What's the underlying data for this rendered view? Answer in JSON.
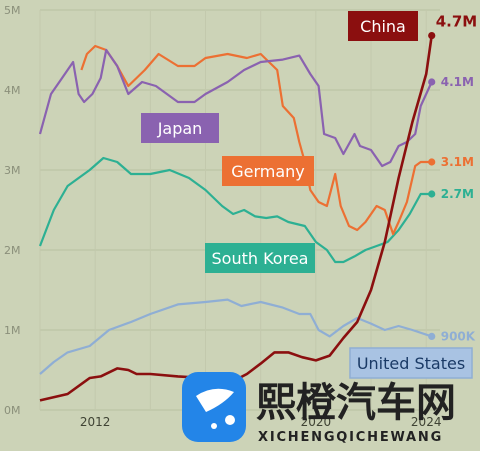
{
  "chart_data": {
    "type": "line",
    "title": "",
    "xlabel": "",
    "ylabel": "",
    "x_ticks": [
      "2012",
      "2020",
      "2024"
    ],
    "y_ticks": [
      "0M",
      "1M",
      "2M",
      "3M",
      "4M",
      "5M"
    ],
    "xlim": [
      2010,
      2024.5
    ],
    "ylim": [
      0,
      5
    ],
    "grid": true,
    "series": [
      {
        "name": "China",
        "color": "#8b0f0f",
        "end_label": "4.7M",
        "points": [
          [
            2010,
            0.12
          ],
          [
            2011,
            0.2
          ],
          [
            2011.8,
            0.4
          ],
          [
            2012.2,
            0.42
          ],
          [
            2012.8,
            0.52
          ],
          [
            2013.2,
            0.5
          ],
          [
            2013.5,
            0.45
          ],
          [
            2014,
            0.45
          ],
          [
            2015,
            0.42
          ],
          [
            2016,
            0.4
          ],
          [
            2016.5,
            0.38
          ],
          [
            2017,
            0.36
          ],
          [
            2017.5,
            0.45
          ],
          [
            2018,
            0.58
          ],
          [
            2018.5,
            0.72
          ],
          [
            2019,
            0.72
          ],
          [
            2019.5,
            0.66
          ],
          [
            2020,
            0.62
          ],
          [
            2020.5,
            0.68
          ],
          [
            2021,
            0.9
          ],
          [
            2021.5,
            1.1
          ],
          [
            2022,
            1.5
          ],
          [
            2022.5,
            2.1
          ],
          [
            2023,
            2.9
          ],
          [
            2023.5,
            3.6
          ],
          [
            2024,
            4.2
          ],
          [
            2024.2,
            4.68
          ]
        ]
      },
      {
        "name": "Japan",
        "color": "#8a62b0",
        "end_label": "4.1M",
        "points": [
          [
            2010,
            3.45
          ],
          [
            2010.4,
            3.95
          ],
          [
            2010.8,
            4.15
          ],
          [
            2011.2,
            4.35
          ],
          [
            2011.4,
            3.95
          ],
          [
            2011.6,
            3.85
          ],
          [
            2011.9,
            3.95
          ],
          [
            2012.2,
            4.15
          ],
          [
            2012.4,
            4.5
          ],
          [
            2012.8,
            4.3
          ],
          [
            2013.2,
            3.95
          ],
          [
            2013.7,
            4.1
          ],
          [
            2014.2,
            4.05
          ],
          [
            2014.6,
            3.95
          ],
          [
            2015,
            3.85
          ],
          [
            2015.6,
            3.85
          ],
          [
            2016,
            3.95
          ],
          [
            2016.8,
            4.1
          ],
          [
            2017.4,
            4.25
          ],
          [
            2018,
            4.35
          ],
          [
            2018.8,
            4.38
          ],
          [
            2019.4,
            4.43
          ],
          [
            2019.8,
            4.2
          ],
          [
            2020.1,
            4.05
          ],
          [
            2020.3,
            3.45
          ],
          [
            2020.7,
            3.4
          ],
          [
            2021,
            3.2
          ],
          [
            2021.4,
            3.45
          ],
          [
            2021.6,
            3.3
          ],
          [
            2022,
            3.25
          ],
          [
            2022.4,
            3.05
          ],
          [
            2022.7,
            3.1
          ],
          [
            2023,
            3.3
          ],
          [
            2023.3,
            3.35
          ],
          [
            2023.6,
            3.45
          ],
          [
            2023.8,
            3.8
          ],
          [
            2024.2,
            4.1
          ]
        ]
      },
      {
        "name": "Germany",
        "color": "#ec7033",
        "end_label": "3.1M",
        "points": [
          [
            2011.5,
            4.25
          ],
          [
            2011.7,
            4.45
          ],
          [
            2012,
            4.55
          ],
          [
            2012.4,
            4.5
          ],
          [
            2012.8,
            4.3
          ],
          [
            2013.2,
            4.05
          ],
          [
            2013.8,
            4.25
          ],
          [
            2014.3,
            4.45
          ],
          [
            2015,
            4.3
          ],
          [
            2015.6,
            4.3
          ],
          [
            2016,
            4.4
          ],
          [
            2016.8,
            4.45
          ],
          [
            2017.5,
            4.4
          ],
          [
            2018,
            4.45
          ],
          [
            2018.6,
            4.25
          ],
          [
            2018.8,
            3.8
          ],
          [
            2019.2,
            3.65
          ],
          [
            2019.4,
            3.35
          ],
          [
            2019.6,
            3.1
          ],
          [
            2019.8,
            2.75
          ],
          [
            2020.1,
            2.6
          ],
          [
            2020.4,
            2.55
          ],
          [
            2020.7,
            2.95
          ],
          [
            2020.9,
            2.55
          ],
          [
            2021.2,
            2.3
          ],
          [
            2021.5,
            2.25
          ],
          [
            2021.8,
            2.35
          ],
          [
            2022.2,
            2.55
          ],
          [
            2022.5,
            2.5
          ],
          [
            2022.8,
            2.2
          ],
          [
            2023,
            2.35
          ],
          [
            2023.3,
            2.6
          ],
          [
            2023.6,
            3.05
          ],
          [
            2023.8,
            3.1
          ],
          [
            2024.2,
            3.1
          ]
        ]
      },
      {
        "name": "South Korea",
        "color": "#2db093",
        "end_label": "2.7M",
        "points": [
          [
            2010,
            2.05
          ],
          [
            2010.5,
            2.5
          ],
          [
            2011,
            2.8
          ],
          [
            2011.8,
            3.0
          ],
          [
            2012.3,
            3.15
          ],
          [
            2012.8,
            3.1
          ],
          [
            2013.3,
            2.95
          ],
          [
            2014,
            2.95
          ],
          [
            2014.7,
            3.0
          ],
          [
            2015.4,
            2.9
          ],
          [
            2016,
            2.75
          ],
          [
            2016.6,
            2.55
          ],
          [
            2017,
            2.45
          ],
          [
            2017.4,
            2.5
          ],
          [
            2017.8,
            2.42
          ],
          [
            2018.2,
            2.4
          ],
          [
            2018.6,
            2.42
          ],
          [
            2019,
            2.35
          ],
          [
            2019.6,
            2.3
          ],
          [
            2020,
            2.1
          ],
          [
            2020.4,
            2.0
          ],
          [
            2020.7,
            1.85
          ],
          [
            2021,
            1.85
          ],
          [
            2021.4,
            1.92
          ],
          [
            2021.8,
            2.0
          ],
          [
            2022.2,
            2.05
          ],
          [
            2022.6,
            2.1
          ],
          [
            2023,
            2.25
          ],
          [
            2023.4,
            2.45
          ],
          [
            2023.8,
            2.7
          ],
          [
            2024.2,
            2.7
          ]
        ]
      },
      {
        "name": "United States",
        "color": "#8faed4",
        "end_label": "900K",
        "points": [
          [
            2010,
            0.45
          ],
          [
            2010.5,
            0.6
          ],
          [
            2011,
            0.72
          ],
          [
            2011.8,
            0.8
          ],
          [
            2012.5,
            1.0
          ],
          [
            2013.3,
            1.1
          ],
          [
            2014,
            1.2
          ],
          [
            2015,
            1.32
          ],
          [
            2016,
            1.35
          ],
          [
            2016.8,
            1.38
          ],
          [
            2017.3,
            1.3
          ],
          [
            2018,
            1.35
          ],
          [
            2018.8,
            1.28
          ],
          [
            2019.4,
            1.2
          ],
          [
            2019.8,
            1.2
          ],
          [
            2020.1,
            1.0
          ],
          [
            2020.5,
            0.92
          ],
          [
            2021,
            1.05
          ],
          [
            2021.5,
            1.15
          ],
          [
            2022,
            1.08
          ],
          [
            2022.5,
            1.0
          ],
          [
            2023,
            1.05
          ],
          [
            2023.5,
            1.0
          ],
          [
            2024.2,
            0.92
          ]
        ]
      }
    ]
  },
  "watermark": {
    "title": "熙橙汽车网",
    "subtitle": "XICHENGQICHEWANG"
  }
}
